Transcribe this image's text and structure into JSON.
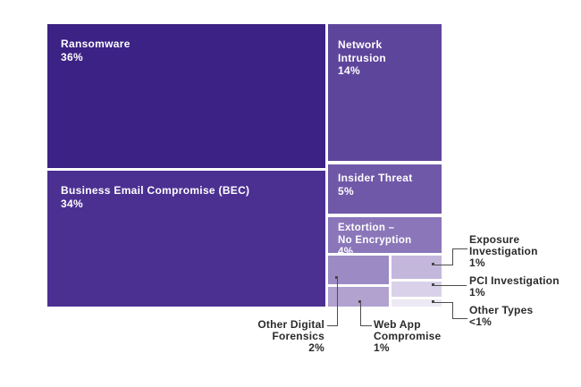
{
  "chart_data": {
    "type": "treemap",
    "title": "",
    "unit": "percent of incidents",
    "legend_position": "none",
    "grid": false,
    "items": [
      {
        "label": "Ransomware",
        "value": 36,
        "value_label": "36%",
        "color": "#3b2284",
        "label_position": "inside"
      },
      {
        "label": "Business Email Compromise (BEC)",
        "value": 34,
        "value_label": "34%",
        "color": "#4b3092",
        "label_position": "inside"
      },
      {
        "label": "Network Intrusion",
        "value": 14,
        "value_label": "14%",
        "color": "#5e459c",
        "label_position": "inside"
      },
      {
        "label": "Insider Threat",
        "value": 5,
        "value_label": "5%",
        "color": "#7058a8",
        "label_position": "inside"
      },
      {
        "label": "Extortion –\nNo Encryption",
        "value": 4,
        "value_label": "4%",
        "color": "#8a76b9",
        "label_position": "inside"
      },
      {
        "label": "Other Digital\nForensics",
        "value": 2,
        "value_label": "2%",
        "color": "#9c8ac4",
        "label_position": "outside-bottom"
      },
      {
        "label": "Web App\nCompromise",
        "value": 1,
        "value_label": "1%",
        "color": "#b1a2cf",
        "label_position": "outside-bottom"
      },
      {
        "label": "Exposure\nInvestigation",
        "value": 1,
        "value_label": "1%",
        "color": "#c4b7dc",
        "label_position": "outside-right"
      },
      {
        "label": "PCI Investigation",
        "value": 1,
        "value_label": "1%",
        "color": "#d9d1e9",
        "label_position": "outside-right"
      },
      {
        "label": "Other Types",
        "value": 0.5,
        "value_label": "<1%",
        "color": "#ece8f4",
        "label_position": "outside-right"
      }
    ],
    "colors": {
      "background": "#ffffff",
      "inside_text": "#ffffff",
      "outside_text": "#2b2b2b",
      "leader_line": "#4d4d4d"
    }
  }
}
